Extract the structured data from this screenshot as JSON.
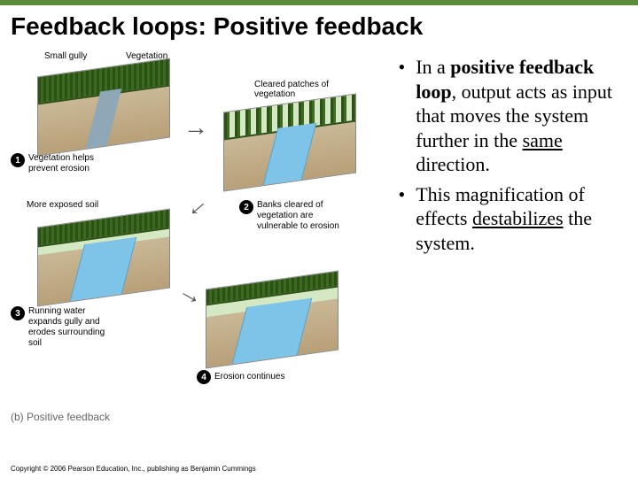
{
  "colors": {
    "top_bar": "#5a8a3a",
    "water": "#7ec4e8",
    "soil_top": "#c9b896",
    "soil_bottom": "#b8a078",
    "vegetation_dark": "#2d5016",
    "vegetation_light": "#3a6b1f",
    "badge_bg": "#000000",
    "badge_fg": "#ffffff"
  },
  "title": "Feedback loops: Positive feedback",
  "diagram": {
    "top_labels": {
      "gully": "Small gully",
      "vegetation": "Vegetation",
      "cleared": "Cleared patches of vegetation"
    },
    "steps": [
      {
        "num": "1",
        "text": "Vegetation helps prevent erosion"
      },
      {
        "num": "2",
        "text": "Banks cleared of vegetation are vulnerable to erosion"
      },
      {
        "num": "3",
        "text": "Running water expands gully and erodes surrounding soil"
      },
      {
        "num": "4",
        "text": "Erosion continues"
      }
    ],
    "mid_label": "More exposed soil",
    "caption": "(b) Positive feedback"
  },
  "bullets": [
    {
      "parts": [
        {
          "t": "In a "
        },
        {
          "t": "positive feedback loop",
          "bold": true
        },
        {
          "t": ", output acts as input that moves the system further in the "
        },
        {
          "t": "same",
          "underline": true
        },
        {
          "t": " direction."
        }
      ]
    },
    {
      "parts": [
        {
          "t": "This magnification of effects "
        },
        {
          "t": "destabilizes",
          "underline": true
        },
        {
          "t": " the system."
        }
      ]
    }
  ],
  "copyright": "Copyright © 2006 Pearson Education, Inc., publishing as Benjamin Cummings"
}
